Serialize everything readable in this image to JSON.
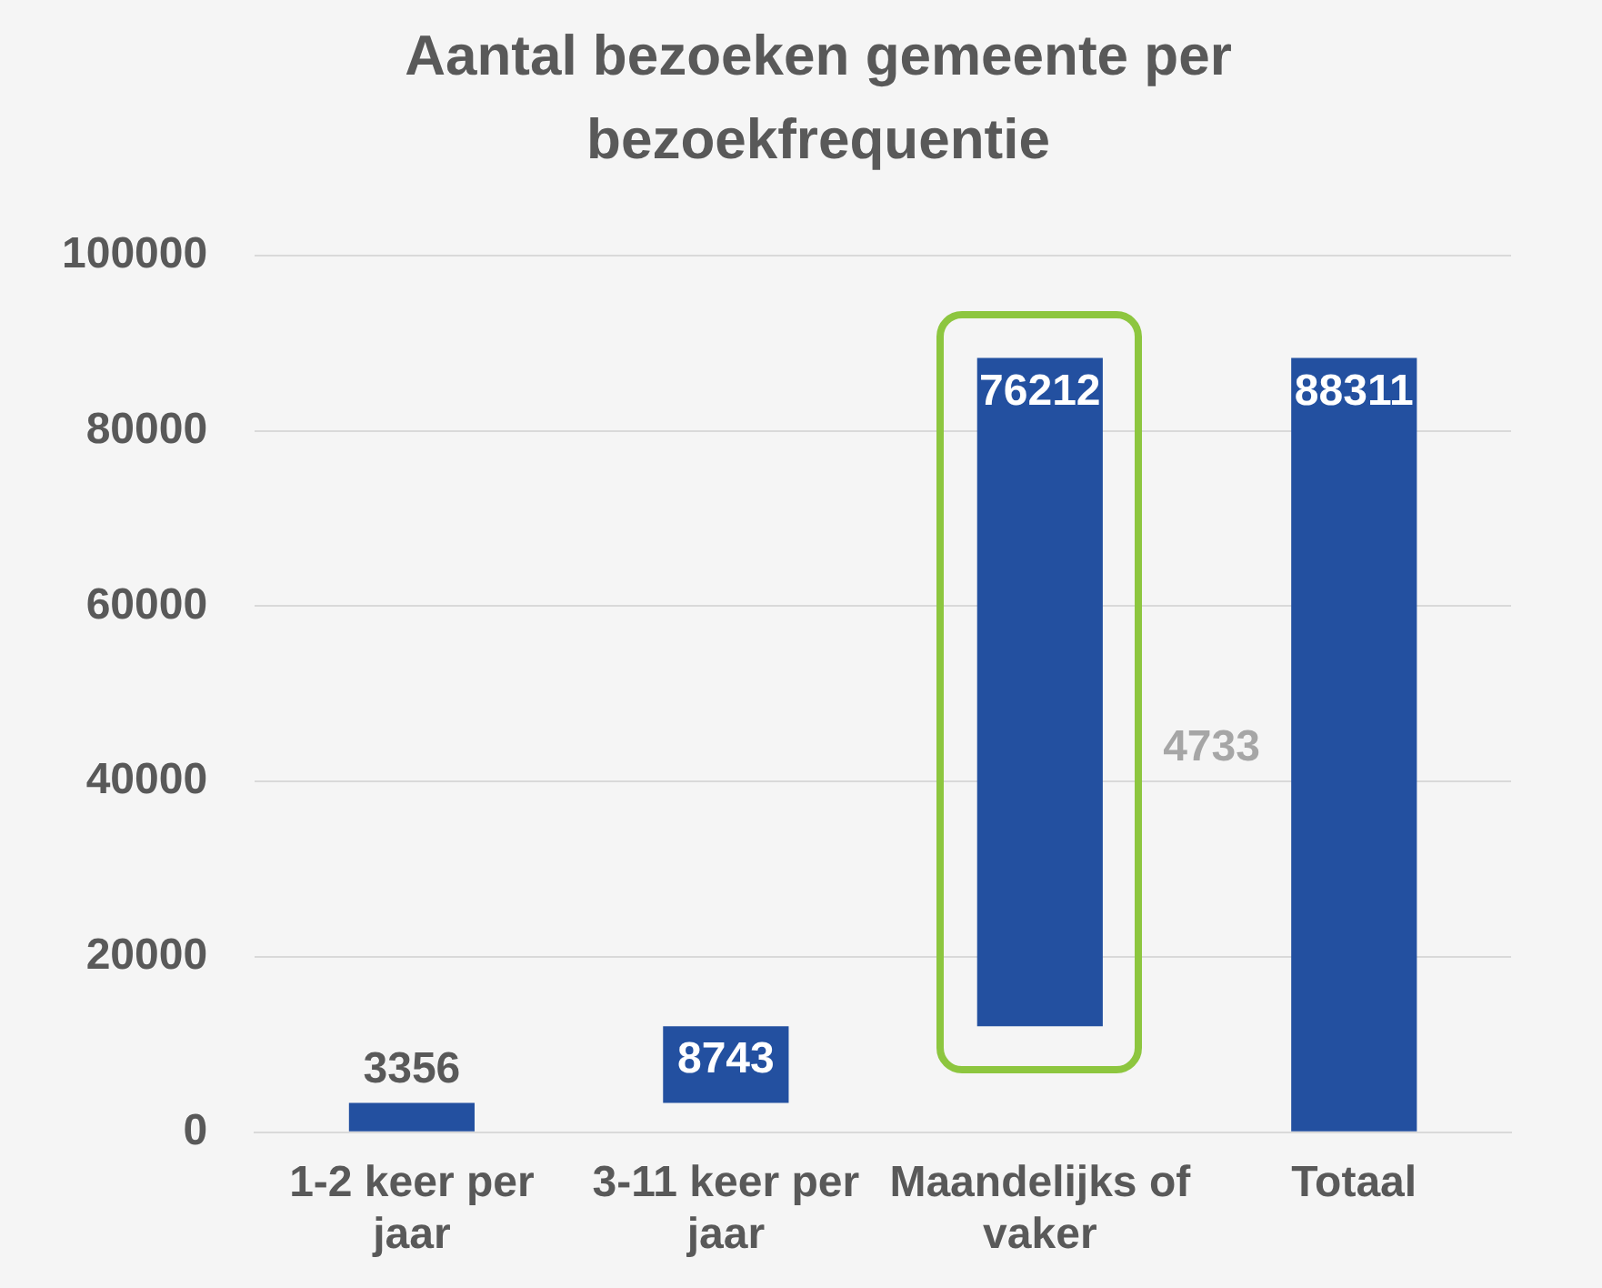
{
  "chart_data": {
    "type": "bar",
    "title": "Aantal bezoeken gemeente per bezoekfrequentie",
    "categories": [
      "1-2 keer per jaar",
      "3-11 keer per jaar",
      "Maandelijks of vaker",
      "Totaal"
    ],
    "values": [
      3356,
      8743,
      76212,
      88311
    ],
    "base": [
      0,
      3356,
      12099,
      0
    ],
    "color": "#2350a0",
    "ylim": [
      0,
      100000
    ],
    "yticks": [
      0,
      20000,
      40000,
      60000,
      80000,
      100000
    ],
    "grid": "y",
    "legend": false,
    "data_labels": true,
    "annotations": [
      "4733"
    ]
  }
}
